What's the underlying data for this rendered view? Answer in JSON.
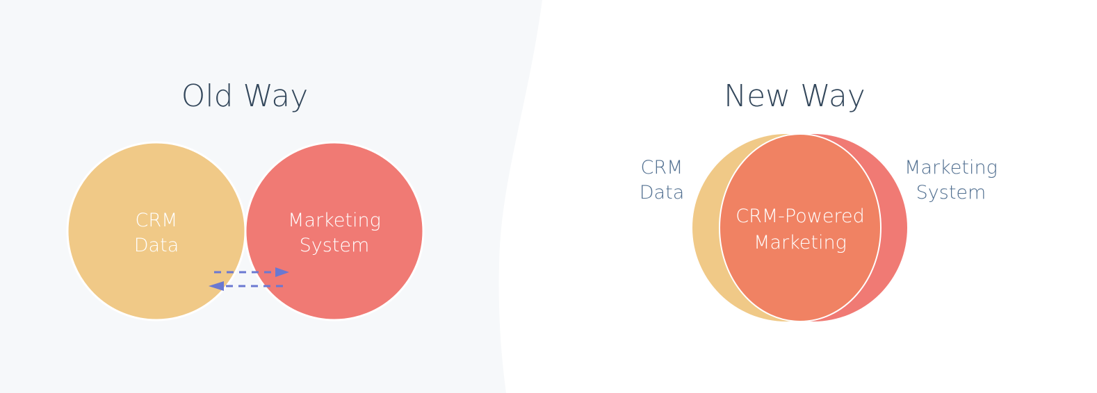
{
  "old_way": {
    "title": "Old Way",
    "crm": {
      "line1": "CRM",
      "line2": "Data"
    },
    "marketing": {
      "line1": "Marketing",
      "line2": "System"
    }
  },
  "new_way": {
    "title": "New Way",
    "crm_label": {
      "line1": "CRM",
      "line2": "Data"
    },
    "marketing_label": {
      "line1": "Marketing",
      "line2": "System"
    },
    "center": {
      "line1": "CRM-Powered",
      "line2": "Marketing"
    }
  },
  "colors": {
    "crm": "#f0c987",
    "marketing": "#f07a74",
    "combined": "#f08263",
    "arrow": "#6a78d1",
    "title": "#33475b",
    "panel": "#f6f8fa"
  }
}
